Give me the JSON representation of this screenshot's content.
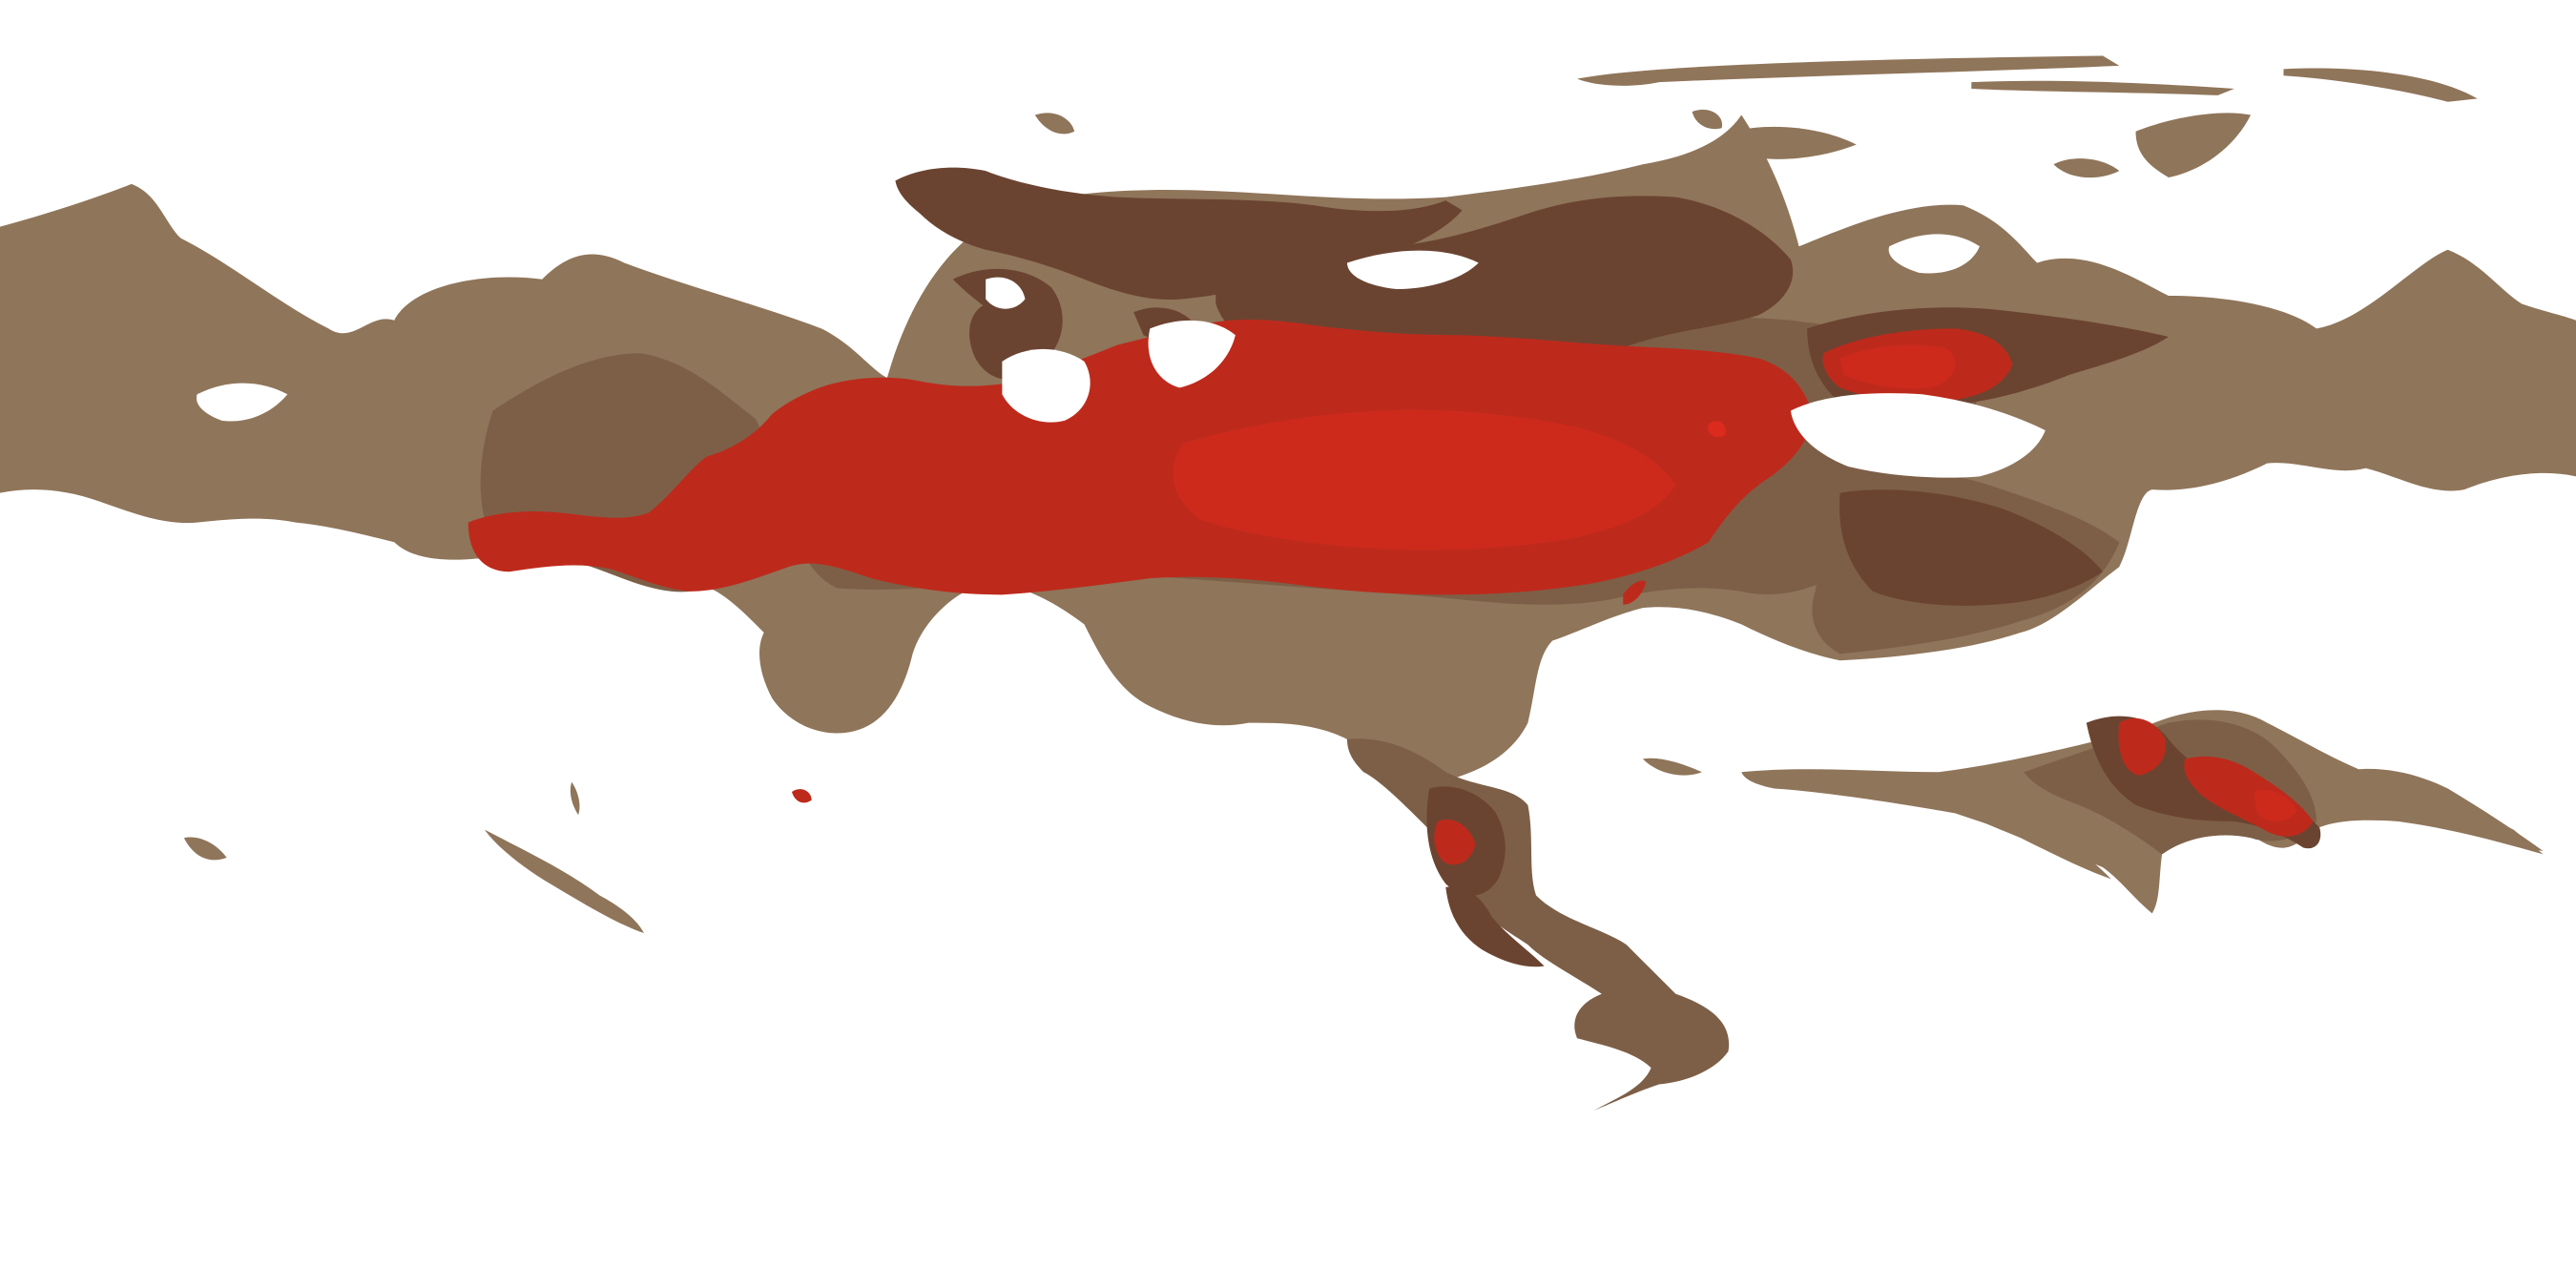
{
  "map": {
    "projection": "equirectangular",
    "legend": "none",
    "labels": "none",
    "background": "#ffffff",
    "palette": {
      "light": "#8f755a",
      "mid": "#7d5f47",
      "dark": "#6b4431",
      "red": "#bd2a1c",
      "bright": "#db2a1e"
    }
  }
}
